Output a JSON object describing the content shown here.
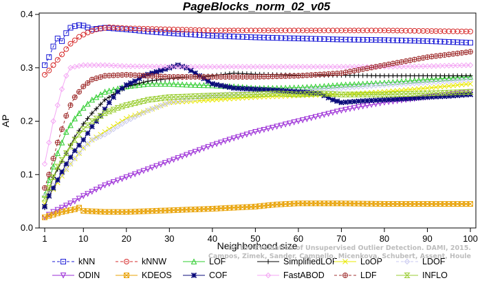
{
  "chart_data": {
    "type": "line",
    "title": "PageBlocks_norm_02_v05",
    "xlabel": "Neighborhood size",
    "ylabel": "AP",
    "xlim": [
      1,
      100
    ],
    "ylim": [
      0,
      0.4
    ],
    "x_ticks": [
      1,
      10,
      20,
      30,
      40,
      50,
      60,
      70,
      80,
      90,
      100
    ],
    "y_ticks": [
      0.0,
      0.1,
      0.2,
      0.3,
      0.4
    ],
    "grid": false,
    "legend_position": "bottom",
    "watermark": [
      "Campos, Zimek, Sander, Campello, Micenkova, Schubert, Assent, Houle",
      "On the Evaluation of Unsupervised Outlier Detection. DAMI, 2015."
    ],
    "series": [
      {
        "name": "kNN",
        "color": "#1a1ad6",
        "marker": "square",
        "dash": "4,3",
        "points": [
          [
            1,
            0.305
          ],
          [
            2,
            0.32
          ],
          [
            3,
            0.34
          ],
          [
            4,
            0.355
          ],
          [
            5,
            0.35
          ],
          [
            6,
            0.365
          ],
          [
            7,
            0.375
          ],
          [
            8,
            0.378
          ],
          [
            9,
            0.38
          ],
          [
            10,
            0.379
          ],
          [
            12,
            0.372
          ],
          [
            15,
            0.375
          ],
          [
            20,
            0.372
          ],
          [
            25,
            0.368
          ],
          [
            30,
            0.365
          ],
          [
            40,
            0.36
          ],
          [
            50,
            0.357
          ],
          [
            60,
            0.355
          ],
          [
            70,
            0.353
          ],
          [
            80,
            0.352
          ],
          [
            90,
            0.35
          ],
          [
            100,
            0.347
          ]
        ]
      },
      {
        "name": "kNNW",
        "color": "#d62a2a",
        "marker": "circle",
        "dash": "4,3",
        "points": [
          [
            1,
            0.287
          ],
          [
            2,
            0.295
          ],
          [
            3,
            0.305
          ],
          [
            5,
            0.325
          ],
          [
            7,
            0.345
          ],
          [
            9,
            0.358
          ],
          [
            11,
            0.366
          ],
          [
            13,
            0.372
          ],
          [
            16,
            0.376
          ],
          [
            20,
            0.374
          ],
          [
            30,
            0.372
          ],
          [
            40,
            0.37
          ],
          [
            50,
            0.37
          ],
          [
            60,
            0.37
          ],
          [
            70,
            0.37
          ],
          [
            80,
            0.37
          ],
          [
            90,
            0.369
          ],
          [
            100,
            0.368
          ]
        ]
      },
      {
        "name": "LOF",
        "color": "#2ecc2e",
        "marker": "triangle-up",
        "dash": "",
        "points": [
          [
            1,
            0.062
          ],
          [
            2,
            0.09
          ],
          [
            3,
            0.115
          ],
          [
            4,
            0.14
          ],
          [
            5,
            0.16
          ],
          [
            6,
            0.18
          ],
          [
            8,
            0.205
          ],
          [
            10,
            0.225
          ],
          [
            12,
            0.24
          ],
          [
            15,
            0.255
          ],
          [
            20,
            0.265
          ],
          [
            25,
            0.27
          ],
          [
            30,
            0.27
          ],
          [
            35,
            0.268
          ],
          [
            40,
            0.267
          ],
          [
            45,
            0.265
          ],
          [
            50,
            0.262
          ],
          [
            55,
            0.262
          ],
          [
            60,
            0.263
          ],
          [
            65,
            0.265
          ],
          [
            70,
            0.268
          ],
          [
            80,
            0.272
          ],
          [
            90,
            0.278
          ],
          [
            100,
            0.283
          ]
        ]
      },
      {
        "name": "SimplifiedLOF",
        "color": "#000000",
        "marker": "plus",
        "dash": "",
        "points": [
          [
            1,
            0.038
          ],
          [
            2,
            0.07
          ],
          [
            3,
            0.095
          ],
          [
            4,
            0.11
          ],
          [
            6,
            0.14
          ],
          [
            8,
            0.17
          ],
          [
            10,
            0.195
          ],
          [
            12,
            0.215
          ],
          [
            15,
            0.24
          ],
          [
            18,
            0.255
          ],
          [
            20,
            0.265
          ],
          [
            25,
            0.275
          ],
          [
            30,
            0.28
          ],
          [
            35,
            0.283
          ],
          [
            40,
            0.285
          ],
          [
            45,
            0.29
          ],
          [
            50,
            0.288
          ],
          [
            55,
            0.287
          ],
          [
            60,
            0.286
          ],
          [
            70,
            0.286
          ],
          [
            80,
            0.285
          ],
          [
            90,
            0.285
          ],
          [
            100,
            0.285
          ]
        ]
      },
      {
        "name": "LoOP",
        "color": "#e8e800",
        "marker": "x",
        "dash": "",
        "points": [
          [
            1,
            0.045
          ],
          [
            2,
            0.06
          ],
          [
            4,
            0.085
          ],
          [
            6,
            0.11
          ],
          [
            8,
            0.13
          ],
          [
            10,
            0.15
          ],
          [
            12,
            0.165
          ],
          [
            15,
            0.18
          ],
          [
            18,
            0.195
          ],
          [
            20,
            0.205
          ],
          [
            25,
            0.22
          ],
          [
            30,
            0.235
          ],
          [
            40,
            0.24
          ],
          [
            50,
            0.245
          ],
          [
            60,
            0.248
          ],
          [
            70,
            0.25
          ],
          [
            80,
            0.255
          ],
          [
            90,
            0.262
          ],
          [
            100,
            0.27
          ]
        ]
      },
      {
        "name": "LDOF",
        "color": "#c8c8f0",
        "marker": "diamond",
        "dash": "4,3",
        "points": [
          [
            1,
            0.06
          ],
          [
            3,
            0.08
          ],
          [
            5,
            0.1
          ],
          [
            8,
            0.13
          ],
          [
            10,
            0.15
          ],
          [
            12,
            0.165
          ],
          [
            15,
            0.175
          ],
          [
            18,
            0.19
          ],
          [
            20,
            0.2
          ],
          [
            25,
            0.22
          ],
          [
            30,
            0.235
          ],
          [
            40,
            0.248
          ],
          [
            50,
            0.255
          ],
          [
            60,
            0.258
          ],
          [
            70,
            0.262
          ],
          [
            80,
            0.268
          ],
          [
            90,
            0.272
          ],
          [
            100,
            0.278
          ]
        ]
      },
      {
        "name": "ODIN",
        "color": "#9a2ad6",
        "marker": "triangle-down",
        "dash": "",
        "points": [
          [
            1,
            0.02
          ],
          [
            3,
            0.03
          ],
          [
            5,
            0.038
          ],
          [
            8,
            0.05
          ],
          [
            10,
            0.06
          ],
          [
            15,
            0.08
          ],
          [
            20,
            0.095
          ],
          [
            25,
            0.11
          ],
          [
            30,
            0.125
          ],
          [
            35,
            0.14
          ],
          [
            40,
            0.155
          ],
          [
            45,
            0.168
          ],
          [
            50,
            0.18
          ],
          [
            55,
            0.19
          ],
          [
            60,
            0.2
          ],
          [
            65,
            0.21
          ],
          [
            70,
            0.22
          ],
          [
            75,
            0.228
          ],
          [
            80,
            0.235
          ],
          [
            85,
            0.24
          ],
          [
            90,
            0.245
          ],
          [
            95,
            0.25
          ],
          [
            100,
            0.255
          ]
        ]
      },
      {
        "name": "KDEOS",
        "color": "#e8a000",
        "marker": "square-x",
        "dash": "",
        "points": [
          [
            1,
            0.02
          ],
          [
            3,
            0.025
          ],
          [
            5,
            0.03
          ],
          [
            8,
            0.035
          ],
          [
            9,
            0.038
          ],
          [
            10,
            0.032
          ],
          [
            15,
            0.03
          ],
          [
            20,
            0.03
          ],
          [
            30,
            0.033
          ],
          [
            40,
            0.036
          ],
          [
            50,
            0.04
          ],
          [
            55,
            0.044
          ],
          [
            60,
            0.046
          ],
          [
            70,
            0.046
          ],
          [
            80,
            0.045
          ],
          [
            90,
            0.045
          ],
          [
            100,
            0.045
          ]
        ]
      },
      {
        "name": "COF",
        "color": "#0a0a7a",
        "marker": "star",
        "dash": "",
        "points": [
          [
            1,
            0.04
          ],
          [
            2,
            0.06
          ],
          [
            4,
            0.09
          ],
          [
            6,
            0.12
          ],
          [
            8,
            0.145
          ],
          [
            10,
            0.165
          ],
          [
            12,
            0.19
          ],
          [
            14,
            0.21
          ],
          [
            16,
            0.235
          ],
          [
            18,
            0.255
          ],
          [
            20,
            0.268
          ],
          [
            22,
            0.275
          ],
          [
            24,
            0.285
          ],
          [
            26,
            0.29
          ],
          [
            28,
            0.295
          ],
          [
            30,
            0.3
          ],
          [
            32,
            0.305
          ],
          [
            34,
            0.3
          ],
          [
            36,
            0.29
          ],
          [
            38,
            0.28
          ],
          [
            40,
            0.27
          ],
          [
            45,
            0.262
          ],
          [
            50,
            0.26
          ],
          [
            55,
            0.258
          ],
          [
            60,
            0.255
          ],
          [
            65,
            0.252
          ],
          [
            68,
            0.24
          ],
          [
            70,
            0.235
          ],
          [
            75,
            0.238
          ],
          [
            80,
            0.24
          ],
          [
            85,
            0.242
          ],
          [
            90,
            0.245
          ],
          [
            95,
            0.247
          ],
          [
            100,
            0.25
          ]
        ]
      },
      {
        "name": "FastABOD",
        "color": "#f4a6f4",
        "marker": "diamond",
        "dash": "",
        "points": [
          [
            1,
            0.12
          ],
          [
            2,
            0.16
          ],
          [
            3,
            0.2
          ],
          [
            4,
            0.23
          ],
          [
            5,
            0.26
          ],
          [
            6,
            0.285
          ],
          [
            7,
            0.3
          ],
          [
            8,
            0.302
          ],
          [
            10,
            0.305
          ],
          [
            15,
            0.305
          ],
          [
            20,
            0.303
          ],
          [
            30,
            0.302
          ],
          [
            40,
            0.302
          ],
          [
            50,
            0.302
          ],
          [
            60,
            0.302
          ],
          [
            70,
            0.302
          ],
          [
            80,
            0.302
          ],
          [
            90,
            0.303
          ],
          [
            100,
            0.305
          ]
        ]
      },
      {
        "name": "LDF",
        "color": "#a03030",
        "marker": "circle-plus",
        "dash": "4,3",
        "points": [
          [
            1,
            0.075
          ],
          [
            2,
            0.1
          ],
          [
            3,
            0.13
          ],
          [
            4,
            0.16
          ],
          [
            5,
            0.185
          ],
          [
            6,
            0.21
          ],
          [
            7,
            0.23
          ],
          [
            8,
            0.245
          ],
          [
            10,
            0.265
          ],
          [
            12,
            0.278
          ],
          [
            15,
            0.285
          ],
          [
            20,
            0.287
          ],
          [
            25,
            0.285
          ],
          [
            30,
            0.283
          ],
          [
            40,
            0.283
          ],
          [
            50,
            0.283
          ],
          [
            60,
            0.285
          ],
          [
            70,
            0.29
          ],
          [
            80,
            0.305
          ],
          [
            90,
            0.32
          ],
          [
            100,
            0.33
          ]
        ]
      },
      {
        "name": "INFLO",
        "color": "#9acd32",
        "marker": "hourglass",
        "dash": "",
        "points": [
          [
            1,
            0.055
          ],
          [
            2,
            0.075
          ],
          [
            3,
            0.095
          ],
          [
            4,
            0.115
          ],
          [
            6,
            0.14
          ],
          [
            8,
            0.165
          ],
          [
            10,
            0.185
          ],
          [
            12,
            0.2
          ],
          [
            15,
            0.215
          ],
          [
            18,
            0.225
          ],
          [
            20,
            0.23
          ],
          [
            25,
            0.24
          ],
          [
            30,
            0.245
          ],
          [
            40,
            0.248
          ],
          [
            50,
            0.25
          ],
          [
            55,
            0.252
          ],
          [
            60,
            0.25
          ],
          [
            65,
            0.252
          ],
          [
            70,
            0.25
          ],
          [
            80,
            0.25
          ],
          [
            90,
            0.252
          ],
          [
            100,
            0.255
          ]
        ]
      }
    ]
  }
}
